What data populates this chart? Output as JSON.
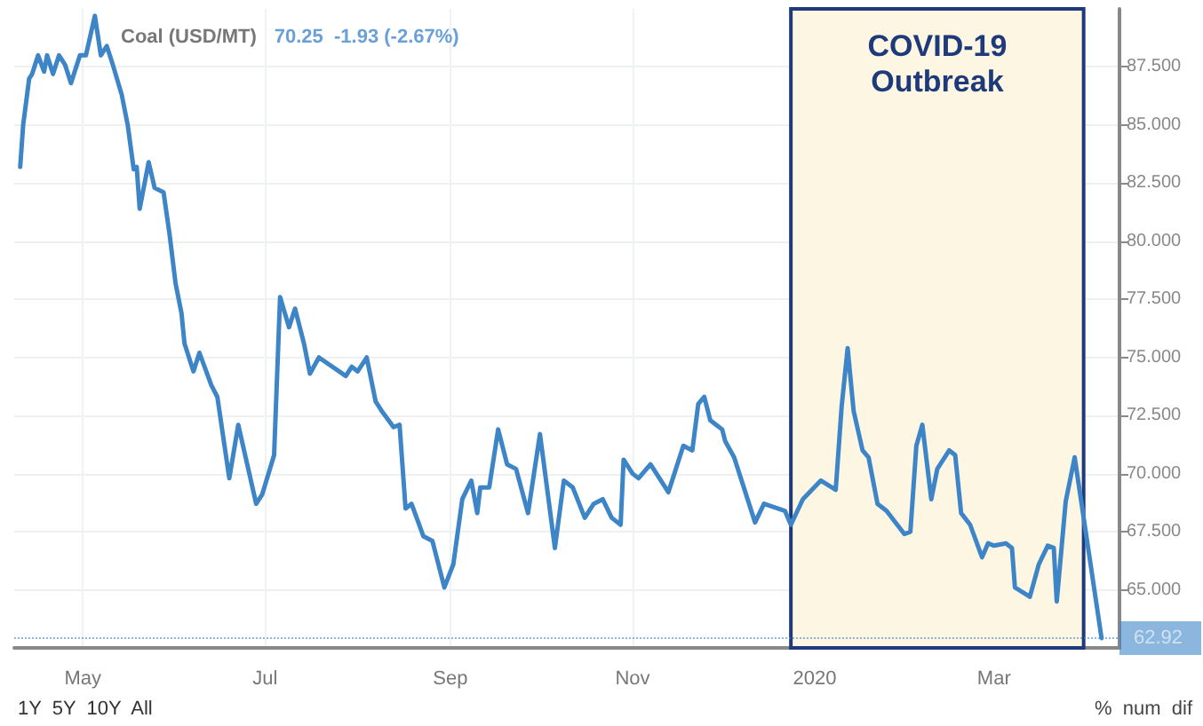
{
  "chart_data": {
    "type": "line",
    "title": "Coal (USD/MT)",
    "subtitle": "70.25  -1.93 (-2.67%)",
    "annotations": [
      "1Y  5Y  10Y  All",
      "%  num  dif"
    ],
    "x": [
      "2019-04-10",
      "2019-04-11",
      "2019-04-13",
      "2019-04-14",
      "2019-04-16",
      "2019-04-18",
      "2019-04-19",
      "2019-04-21",
      "2019-04-23",
      "2019-04-25",
      "2019-04-27",
      "2019-04-30",
      "2019-05-02",
      "2019-05-05",
      "2019-05-07",
      "2019-05-09",
      "2019-05-11",
      "2019-05-14",
      "2019-05-16",
      "2019-05-18",
      "2019-05-19",
      "2019-05-20",
      "2019-05-23",
      "2019-05-25",
      "2019-05-28",
      "2019-05-30",
      "2019-06-01",
      "2019-06-03",
      "2019-06-04",
      "2019-06-07",
      "2019-06-09",
      "2019-06-13",
      "2019-06-15",
      "2019-06-19",
      "2019-06-22",
      "2019-06-28",
      "2019-06-30",
      "2019-07-04",
      "2019-07-06",
      "2019-07-09",
      "2019-07-11",
      "2019-07-14",
      "2019-07-16",
      "2019-07-19",
      "2019-07-28",
      "2019-07-30",
      "2019-08-01",
      "2019-08-04",
      "2019-08-07",
      "2019-08-09",
      "2019-08-13",
      "2019-08-15",
      "2019-08-17",
      "2019-08-19",
      "2019-08-23",
      "2019-08-26",
      "2019-08-30",
      "2019-09-02",
      "2019-09-05",
      "2019-09-08",
      "2019-09-10",
      "2019-09-11",
      "2019-09-14",
      "2019-09-17",
      "2019-09-20",
      "2019-09-23",
      "2019-09-27",
      "2019-10-01",
      "2019-10-06",
      "2019-10-09",
      "2019-10-12",
      "2019-10-16",
      "2019-10-19",
      "2019-10-22",
      "2019-10-25",
      "2019-10-28",
      "2019-10-29",
      "2019-11-01",
      "2019-11-03",
      "2019-11-07",
      "2019-11-10",
      "2019-11-13",
      "2019-11-15",
      "2019-11-18",
      "2019-11-21",
      "2019-11-23",
      "2019-11-25",
      "2019-11-27",
      "2019-11-29",
      "2019-12-01",
      "2019-12-02",
      "2019-12-05",
      "2019-12-12",
      "2019-12-15",
      "2019-12-22",
      "2019-12-24",
      "2019-12-28",
      "2019-12-31",
      "2020-01-03",
      "2020-01-08",
      "2020-01-10",
      "2020-01-12",
      "2020-01-14",
      "2020-01-17",
      "2020-01-19",
      "2020-01-22",
      "2020-01-25",
      "2020-01-31",
      "2020-02-02",
      "2020-02-04",
      "2020-02-06",
      "2020-02-09",
      "2020-02-11",
      "2020-02-15",
      "2020-02-17",
      "2020-02-19",
      "2020-02-22",
      "2020-02-26",
      "2020-02-28",
      "2020-03-01",
      "2020-03-05",
      "2020-03-07",
      "2020-03-08",
      "2020-03-13",
      "2020-03-16",
      "2020-03-19",
      "2020-03-21",
      "2020-03-22",
      "2020-03-25",
      "2020-03-28",
      "2020-04-06"
    ],
    "series": [
      {
        "color": "#3d85c6",
        "values": [
          83.2,
          85.0,
          87.0,
          87.2,
          88.0,
          87.3,
          88.0,
          87.2,
          88.0,
          87.6,
          86.8,
          88.0,
          88.0,
          89.7,
          88.0,
          88.4,
          87.6,
          86.3,
          85.0,
          83.1,
          83.2,
          81.4,
          83.4,
          82.3,
          82.1,
          80.3,
          78.2,
          76.9,
          75.6,
          74.4,
          75.2,
          73.8,
          73.3,
          69.8,
          72.1,
          68.7,
          69.1,
          70.8,
          77.6,
          76.3,
          77.1,
          75.6,
          74.3,
          75.0,
          74.2,
          74.6,
          74.4,
          75.0,
          73.1,
          72.7,
          72.0,
          72.1,
          68.5,
          68.7,
          67.3,
          67.1,
          65.1,
          66.1,
          68.9,
          69.7,
          68.3,
          69.4,
          69.4,
          71.9,
          70.4,
          70.2,
          68.3,
          71.7,
          66.8,
          69.7,
          69.4,
          68.1,
          68.7,
          68.9,
          68.1,
          67.8,
          70.6,
          70.0,
          69.8,
          70.4,
          69.8,
          69.2,
          70.0,
          71.2,
          71.0,
          73.0,
          73.3,
          72.3,
          72.1,
          71.9,
          71.4,
          70.7,
          67.9,
          68.7,
          68.4,
          67.8,
          68.9,
          69.3,
          69.7,
          69.3,
          72.9,
          75.4,
          72.7,
          71.0,
          70.7,
          68.7,
          68.4,
          67.4,
          67.5,
          71.2,
          72.1,
          68.9,
          70.2,
          71.0,
          70.8,
          68.3,
          67.8,
          66.4,
          67.0,
          66.9,
          67.0,
          66.8,
          65.1,
          64.7,
          66.1,
          66.9,
          66.8,
          64.5,
          68.8,
          70.7,
          62.92
        ]
      }
    ],
    "xlim": [
      "2019-04-08",
      "2020-04-12"
    ],
    "xticks": [
      {
        "value": "2019-05-01",
        "label": "May"
      },
      {
        "value": "2019-07-01",
        "label": "Jul"
      },
      {
        "value": "2019-09-01",
        "label": "Sep"
      },
      {
        "value": "2019-11-01",
        "label": "Nov"
      },
      {
        "value": "2020-01-01",
        "label": "2020"
      },
      {
        "value": "2020-03-01",
        "label": "Mar"
      }
    ],
    "ylim": [
      62.5,
      90
    ],
    "yticks": [
      {
        "value": 65,
        "label": "65.000"
      },
      {
        "value": 67.5,
        "label": "67.500"
      },
      {
        "value": 70,
        "label": "70.000"
      },
      {
        "value": 72.5,
        "label": "72.500"
      },
      {
        "value": 75,
        "label": "75.000"
      },
      {
        "value": 77.5,
        "label": "77.500"
      },
      {
        "value": 80,
        "label": "80.000"
      },
      {
        "value": 82.5,
        "label": "82.500"
      },
      {
        "value": 85,
        "label": "85.000"
      },
      {
        "value": 87.5,
        "label": "87.500"
      }
    ],
    "ref_lines": [
      {
        "axis": "y",
        "value": 62.92,
        "label": "62.92",
        "color": "#3d85c6",
        "line_style": "dotted"
      }
    ],
    "bands": [
      {
        "axis": "x",
        "from": "2019-12-24",
        "to": "2020-03-31",
        "label": "COVID-19\nOutbreak",
        "color": "#fdf6e3"
      }
    ],
    "grid": true,
    "marker": "none"
  }
}
